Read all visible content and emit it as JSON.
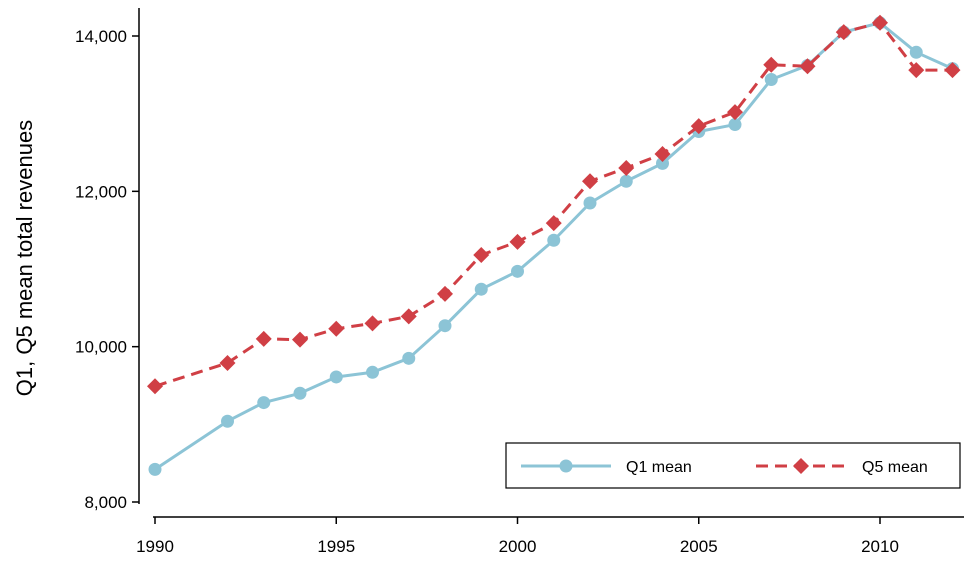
{
  "chart_data": {
    "type": "line",
    "title": "",
    "xlabel": "",
    "ylabel": "Q1, Q5 mean total revenues",
    "xlim": [
      1990,
      2012
    ],
    "ylim": [
      8000,
      14000
    ],
    "x_ticks": [
      1990,
      1995,
      2000,
      2005,
      2010
    ],
    "y_ticks": [
      8000,
      10000,
      12000,
      14000
    ],
    "x_tick_labels": [
      "1990",
      "1995",
      "2000",
      "2005",
      "2010"
    ],
    "y_tick_labels": [
      "8,000",
      "10,000",
      "12,000",
      "14,000"
    ],
    "grid": false,
    "legend_position": "bottom-right",
    "series": [
      {
        "name": "Q1 mean",
        "color": "#8cc4d6",
        "marker": "circle",
        "line_style": "solid",
        "points": [
          {
            "x": 1990,
            "y": 8420
          },
          {
            "x": 1992,
            "y": 9040
          },
          {
            "x": 1993,
            "y": 9280
          },
          {
            "x": 1994,
            "y": 9400
          },
          {
            "x": 1995,
            "y": 9610
          },
          {
            "x": 1996,
            "y": 9670
          },
          {
            "x": 1997,
            "y": 9850
          },
          {
            "x": 1998,
            "y": 10270
          },
          {
            "x": 1999,
            "y": 10740
          },
          {
            "x": 2000,
            "y": 10970
          },
          {
            "x": 2001,
            "y": 11370
          },
          {
            "x": 2002,
            "y": 11850
          },
          {
            "x": 2003,
            "y": 12130
          },
          {
            "x": 2004,
            "y": 12360
          },
          {
            "x": 2005,
            "y": 12770
          },
          {
            "x": 2006,
            "y": 12860
          },
          {
            "x": 2007,
            "y": 13440
          },
          {
            "x": 2008,
            "y": 13620
          },
          {
            "x": 2009,
            "y": 14050
          },
          {
            "x": 2010,
            "y": 14170
          },
          {
            "x": 2011,
            "y": 13790
          },
          {
            "x": 2012,
            "y": 13580
          }
        ]
      },
      {
        "name": "Q5 mean",
        "color": "#d03f45",
        "marker": "diamond",
        "line_style": "dashed",
        "points": [
          {
            "x": 1990,
            "y": 9490
          },
          {
            "x": 1992,
            "y": 9790
          },
          {
            "x": 1993,
            "y": 10100
          },
          {
            "x": 1994,
            "y": 10090
          },
          {
            "x": 1995,
            "y": 10230
          },
          {
            "x": 1996,
            "y": 10300
          },
          {
            "x": 1997,
            "y": 10390
          },
          {
            "x": 1998,
            "y": 10680
          },
          {
            "x": 1999,
            "y": 11180
          },
          {
            "x": 2000,
            "y": 11350
          },
          {
            "x": 2001,
            "y": 11590
          },
          {
            "x": 2002,
            "y": 12130
          },
          {
            "x": 2003,
            "y": 12300
          },
          {
            "x": 2004,
            "y": 12480
          },
          {
            "x": 2005,
            "y": 12840
          },
          {
            "x": 2006,
            "y": 13020
          },
          {
            "x": 2007,
            "y": 13630
          },
          {
            "x": 2008,
            "y": 13610
          },
          {
            "x": 2009,
            "y": 14050
          },
          {
            "x": 2010,
            "y": 14170
          },
          {
            "x": 2011,
            "y": 13560
          },
          {
            "x": 2012,
            "y": 13560
          }
        ]
      }
    ]
  }
}
